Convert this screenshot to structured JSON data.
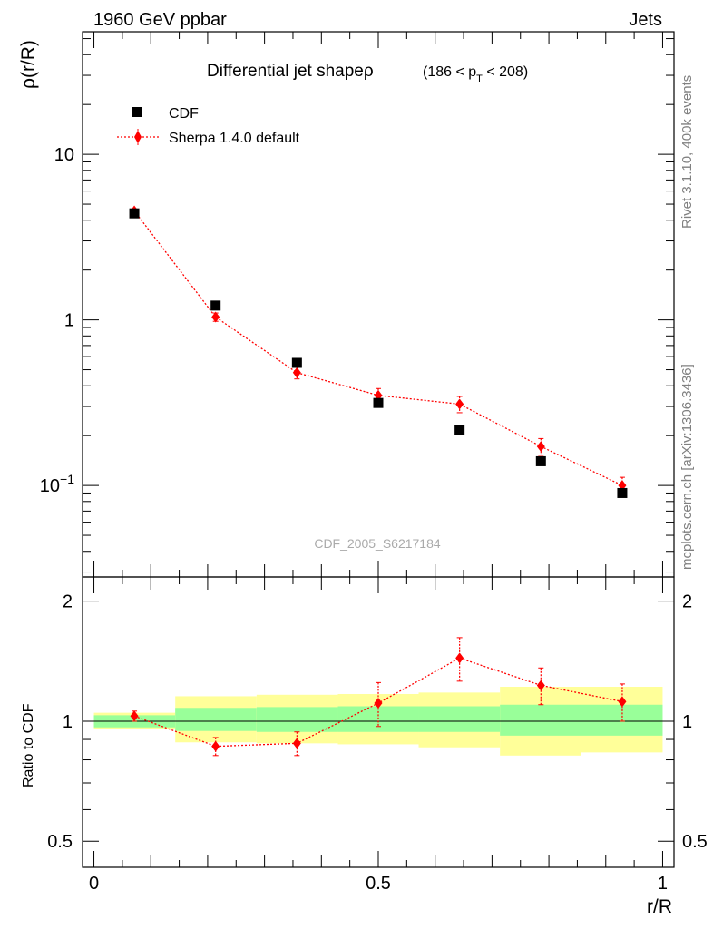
{
  "header": {
    "energy_label": "1960 GeV ppbar",
    "process_label": "Jets"
  },
  "side_labels": {
    "rivet": "Rivet 3.1.10,  400k events",
    "mcplots": "mcplots.cern.ch [arXiv:1306.3436]"
  },
  "watermark": "CDF_2005_S6217184",
  "chart_data": [
    {
      "type": "scatter",
      "panel": "main",
      "title": "Differential jet shape",
      "title_symbol": "ρ",
      "title_range": {
        "open": "(186 < p",
        "sub": "T",
        "close": " < 208)"
      },
      "xlabel": "r/R",
      "ylabel": "ρ(r/R)",
      "yscale": "log",
      "xlim": [
        -0.02,
        1.02
      ],
      "ylim": [
        0.028,
        55
      ],
      "yticks": [
        {
          "value": 0.1,
          "label_base": "10",
          "label_exp": "−1"
        },
        {
          "value": 1,
          "label": "1"
        },
        {
          "value": 10,
          "label": "10"
        }
      ],
      "legend": [
        "CDF",
        "Sherpa 1.4.0 default"
      ],
      "legend_position": "top-left",
      "series": [
        {
          "name": "CDF",
          "color": "#000000",
          "marker": "square",
          "x": [
            0.071,
            0.214,
            0.357,
            0.5,
            0.643,
            0.786,
            0.929
          ],
          "y": [
            4.4,
            1.22,
            0.55,
            0.315,
            0.215,
            0.14,
            0.09
          ]
        },
        {
          "name": "Sherpa 1.4.0 default",
          "color": "#ff0000",
          "marker": "diamond",
          "line": "dotted",
          "x": [
            0.071,
            0.214,
            0.357,
            0.5,
            0.643,
            0.786,
            0.929
          ],
          "y": [
            4.55,
            1.04,
            0.48,
            0.35,
            0.31,
            0.172,
            0.1
          ],
          "yerr": [
            0.12,
            0.06,
            0.04,
            0.035,
            0.035,
            0.02,
            0.012
          ]
        }
      ]
    },
    {
      "type": "scatter",
      "panel": "ratio",
      "xlabel": "r/R",
      "ylabel": "Ratio to CDF",
      "yscale": "log",
      "xlim": [
        -0.02,
        1.02
      ],
      "ylim": [
        0.43,
        2.3
      ],
      "xticks": [
        {
          "value": 0,
          "label": "0"
        },
        {
          "value": 0.5,
          "label": "0.5"
        },
        {
          "value": 1,
          "label": "1"
        }
      ],
      "yticks": [
        {
          "value": 0.5,
          "label": "0.5"
        },
        {
          "value": 1,
          "label": "1"
        },
        {
          "value": 2,
          "label": "2"
        }
      ],
      "reference_line": 1,
      "bands": {
        "bin_edges": [
          0,
          0.143,
          0.286,
          0.429,
          0.571,
          0.714,
          0.857,
          1.0
        ],
        "inner": {
          "color": "#99ff99",
          "low": [
            0.965,
            0.945,
            0.94,
            0.94,
            0.94,
            0.92,
            0.92
          ],
          "high": [
            1.035,
            1.08,
            1.085,
            1.09,
            1.09,
            1.1,
            1.1
          ]
        },
        "outer": {
          "color": "#ffff99",
          "low": [
            0.955,
            0.885,
            0.88,
            0.875,
            0.86,
            0.82,
            0.835
          ],
          "high": [
            1.05,
            1.155,
            1.165,
            1.17,
            1.18,
            1.22,
            1.22
          ]
        }
      },
      "series": [
        {
          "name": "Sherpa 1.4.0 default",
          "color": "#ff0000",
          "marker": "diamond",
          "line": "dotted",
          "x": [
            0.071,
            0.214,
            0.357,
            0.5,
            0.643,
            0.786,
            0.929
          ],
          "y": [
            1.03,
            0.865,
            0.88,
            1.11,
            1.44,
            1.23,
            1.12
          ],
          "yerr": [
            0.03,
            0.045,
            0.06,
            0.14,
            0.18,
            0.13,
            0.12
          ]
        }
      ]
    }
  ]
}
